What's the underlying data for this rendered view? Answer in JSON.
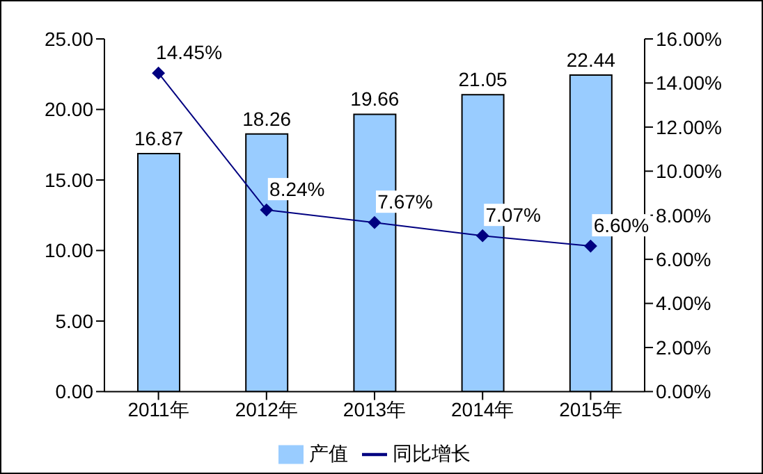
{
  "chart_data": {
    "type": "bar",
    "categories": [
      "2011年",
      "2012年",
      "2013年",
      "2014年",
      "2015年"
    ],
    "series": [
      {
        "name": "产值",
        "color": "#99ccff",
        "values": [
          16.87,
          18.26,
          19.66,
          21.05,
          22.44
        ],
        "value_labels": [
          "16.87",
          "18.26",
          "19.66",
          "21.05",
          "22.44"
        ]
      },
      {
        "name": "同比增长",
        "type": "line",
        "axis": "y2",
        "color": "#000080",
        "values": [
          14.45,
          8.24,
          7.67,
          7.07,
          6.6
        ],
        "value_labels": [
          "14.45%",
          "8.24%",
          "7.67%",
          "7.07%",
          "6.60%"
        ]
      }
    ],
    "ylim": [
      0,
      25
    ],
    "yticks": [
      {
        "value": 0,
        "label": "0.00"
      },
      {
        "value": 5,
        "label": "5.00"
      },
      {
        "value": 10,
        "label": "10.00"
      },
      {
        "value": 15,
        "label": "15.00"
      },
      {
        "value": 20,
        "label": "20.00"
      },
      {
        "value": 25,
        "label": "25.00"
      }
    ],
    "y2lim": [
      0,
      16
    ],
    "y2ticks": [
      {
        "value": 0,
        "label": "0.00%"
      },
      {
        "value": 2,
        "label": "2.00%"
      },
      {
        "value": 4,
        "label": "4.00%"
      },
      {
        "value": 6,
        "label": "6.00%"
      },
      {
        "value": 8,
        "label": "8.00%"
      },
      {
        "value": 10,
        "label": "10.00%"
      },
      {
        "value": 12,
        "label": "12.00%"
      },
      {
        "value": 14,
        "label": "14.00%"
      },
      {
        "value": 16,
        "label": "16.00%"
      }
    ],
    "legend": "bottom",
    "marker": "diamond",
    "line_style": "solid"
  }
}
